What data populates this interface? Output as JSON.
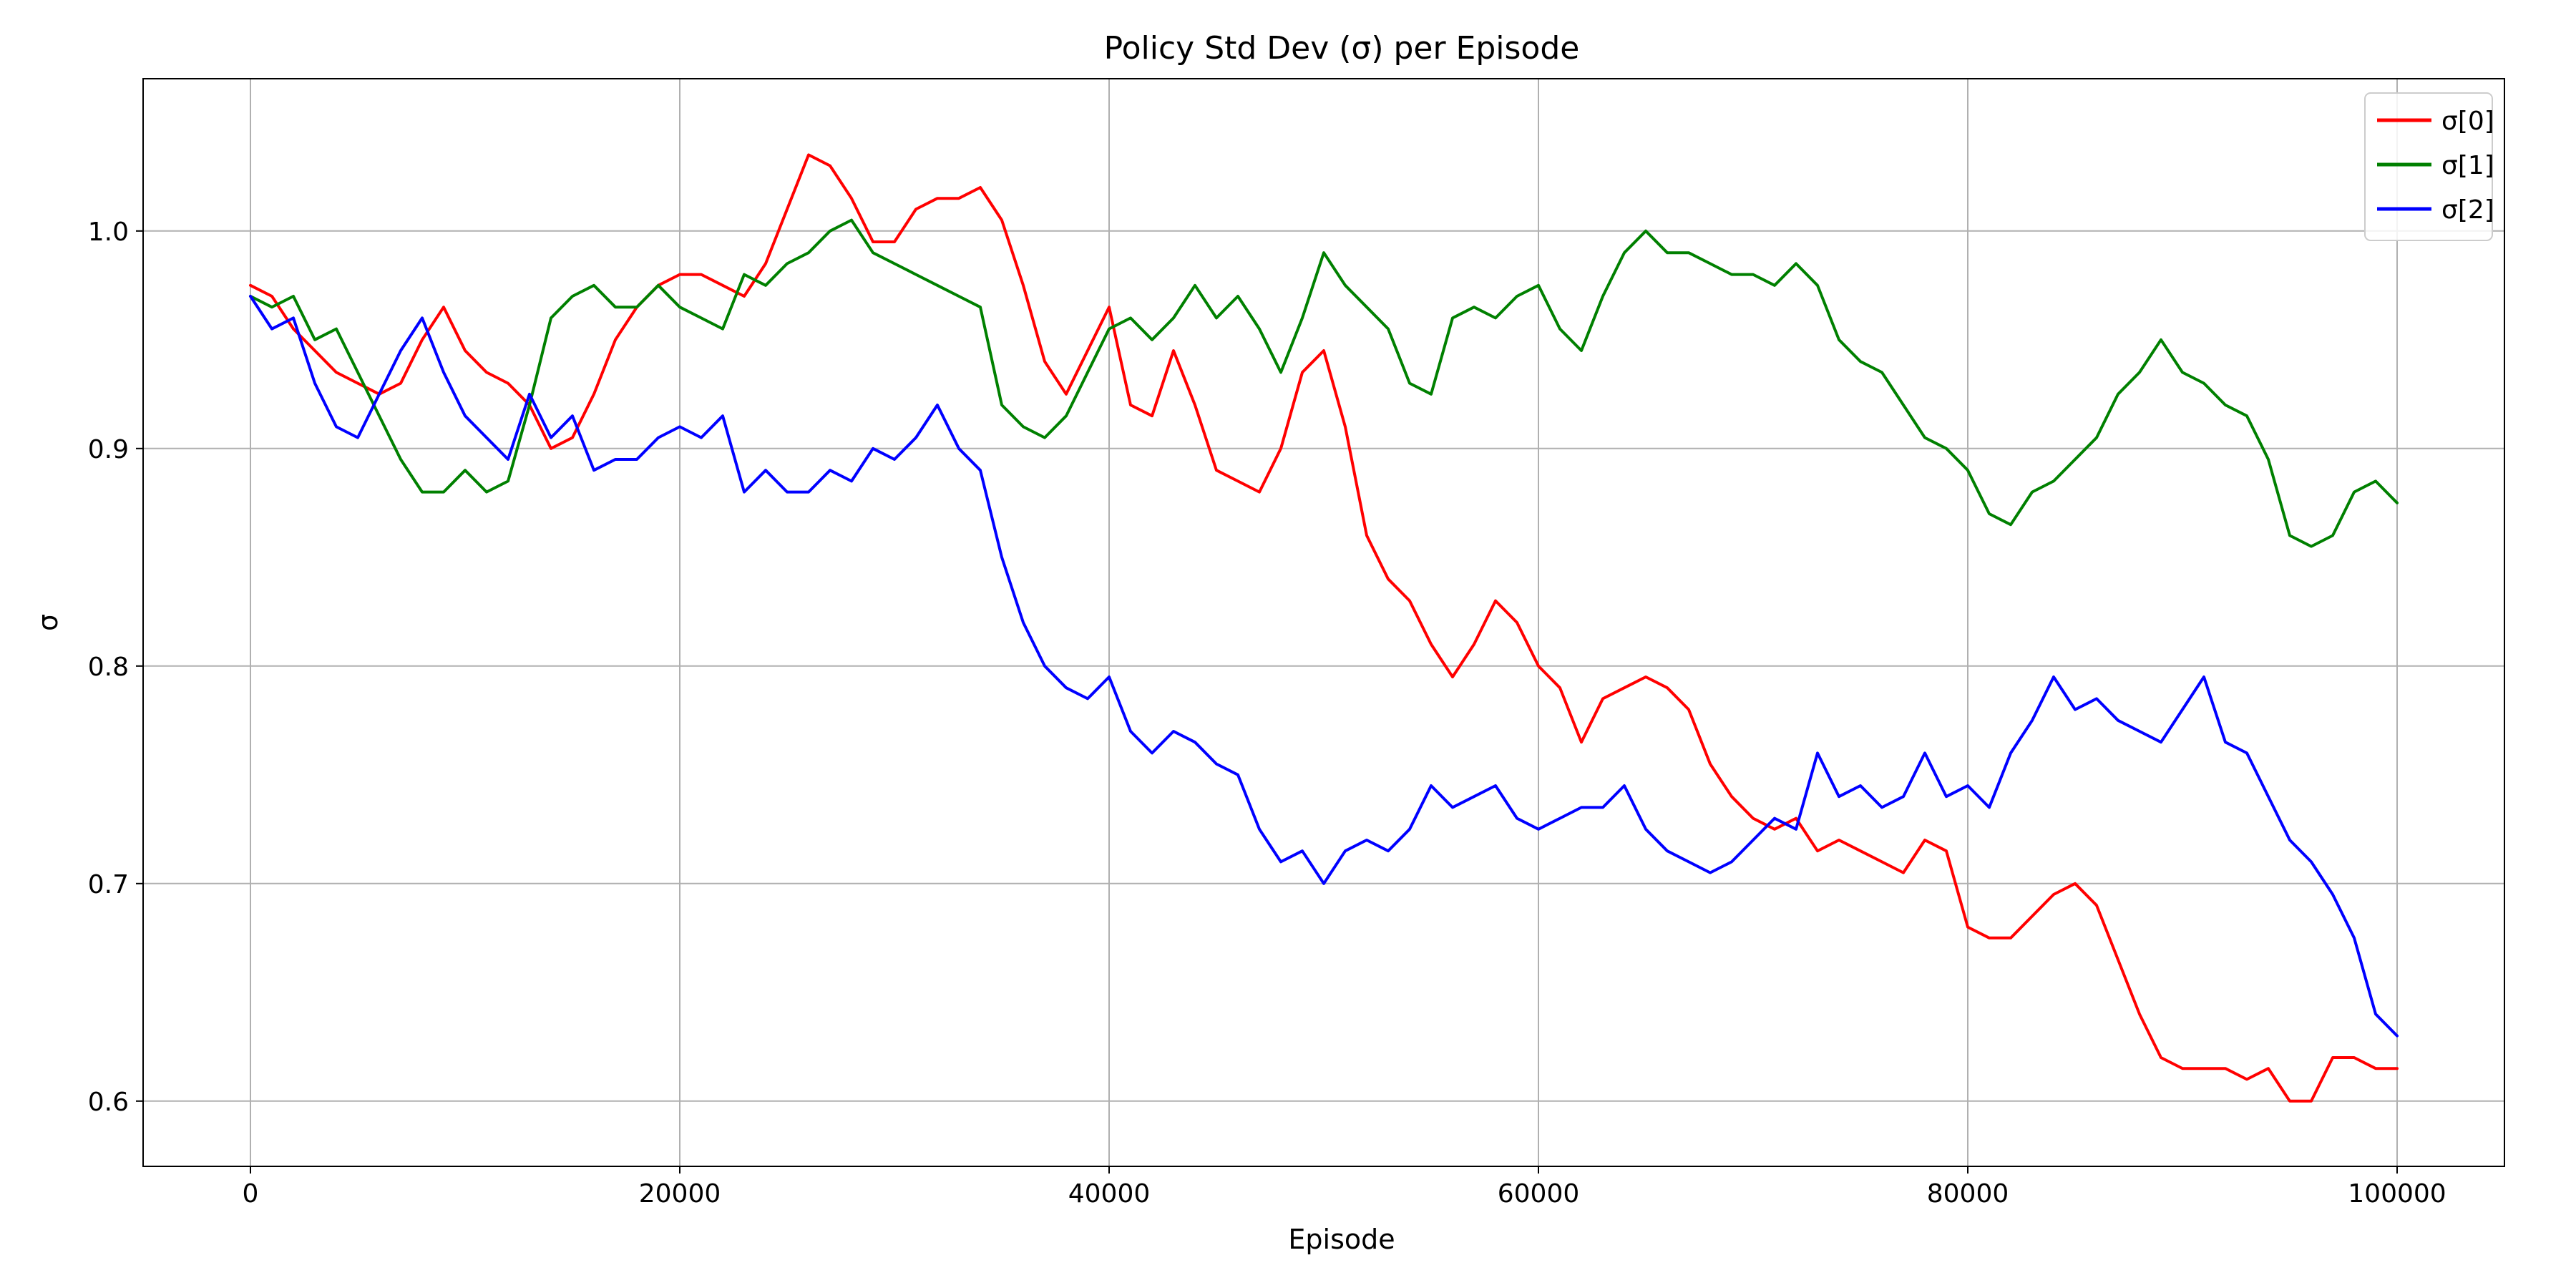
{
  "chart_data": {
    "type": "line",
    "title": "Policy Std Dev (σ) per Episode",
    "xlabel": "Episode",
    "ylabel": "σ",
    "xlim": [
      -5000,
      105000
    ],
    "ylim": [
      0.57,
      1.07
    ],
    "xticks": [
      0,
      20000,
      40000,
      60000,
      80000,
      100000
    ],
    "xtick_labels": [
      "0",
      "20000",
      "40000",
      "60000",
      "80000",
      "100000"
    ],
    "yticks": [
      0.6,
      0.7,
      0.8,
      0.9,
      1.0
    ],
    "ytick_labels": [
      "0.6",
      "0.7",
      "0.8",
      "0.9",
      "1.0"
    ],
    "grid": true,
    "legend_position": "top-right",
    "x": [
      0,
      1000,
      2000,
      3000,
      4000,
      5000,
      6000,
      7000,
      8000,
      9000,
      10000,
      11000,
      12000,
      13000,
      14000,
      15000,
      16000,
      17000,
      18000,
      19000,
      20000,
      21000,
      22000,
      23000,
      24000,
      25000,
      26000,
      27000,
      28000,
      29000,
      30000,
      31000,
      32000,
      33000,
      34000,
      35000,
      36000,
      37000,
      38000,
      39000,
      40000,
      41000,
      42000,
      43000,
      44000,
      45000,
      46000,
      47000,
      48000,
      49000,
      50000,
      51000,
      52000,
      53000,
      54000,
      55000,
      56000,
      57000,
      58000,
      59000,
      60000,
      61000,
      62000,
      63000,
      64000,
      65000,
      66000,
      67000,
      68000,
      69000,
      70000,
      71000,
      72000,
      73000,
      74000,
      75000,
      76000,
      77000,
      78000,
      79000,
      80000,
      81000,
      82000,
      83000,
      84000,
      85000,
      86000,
      87000,
      88000,
      89000,
      90000,
      91000,
      92000,
      93000,
      94000,
      95000,
      96000,
      97000,
      98000,
      99000,
      100000
    ],
    "series": [
      {
        "name": "σ[0]",
        "color": "#ff0000",
        "values": [
          0.975,
          0.97,
          0.955,
          0.945,
          0.935,
          0.93,
          0.925,
          0.93,
          0.95,
          0.965,
          0.945,
          0.935,
          0.93,
          0.92,
          0.9,
          0.905,
          0.925,
          0.95,
          0.965,
          0.975,
          0.98,
          0.98,
          0.975,
          0.97,
          0.985,
          1.01,
          1.035,
          1.03,
          1.015,
          0.995,
          0.995,
          1.01,
          1.015,
          1.015,
          1.02,
          1.005,
          0.975,
          0.94,
          0.925,
          0.945,
          0.965,
          0.92,
          0.915,
          0.945,
          0.92,
          0.89,
          0.885,
          0.88,
          0.9,
          0.935,
          0.945,
          0.91,
          0.86,
          0.84,
          0.83,
          0.81,
          0.795,
          0.81,
          0.83,
          0.82,
          0.8,
          0.79,
          0.765,
          0.785,
          0.79,
          0.795,
          0.79,
          0.78,
          0.755,
          0.74,
          0.73,
          0.725,
          0.73,
          0.715,
          0.72,
          0.715,
          0.71,
          0.705,
          0.72,
          0.715,
          0.68,
          0.675,
          0.675,
          0.685,
          0.695,
          0.7,
          0.69,
          0.665,
          0.64,
          0.62,
          0.615,
          0.615,
          0.615,
          0.61,
          0.615,
          0.6,
          0.6,
          0.62,
          0.62,
          0.615,
          0.615
        ]
      },
      {
        "name": "σ[1]",
        "color": "#008000",
        "values": [
          0.97,
          0.965,
          0.97,
          0.95,
          0.955,
          0.935,
          0.915,
          0.895,
          0.88,
          0.88,
          0.89,
          0.88,
          0.885,
          0.92,
          0.96,
          0.97,
          0.975,
          0.965,
          0.965,
          0.975,
          0.965,
          0.96,
          0.955,
          0.98,
          0.975,
          0.985,
          0.99,
          1.0,
          1.005,
          0.99,
          0.985,
          0.98,
          0.975,
          0.97,
          0.965,
          0.92,
          0.91,
          0.905,
          0.915,
          0.935,
          0.955,
          0.96,
          0.95,
          0.96,
          0.975,
          0.96,
          0.97,
          0.955,
          0.935,
          0.96,
          0.99,
          0.975,
          0.965,
          0.955,
          0.93,
          0.925,
          0.96,
          0.965,
          0.96,
          0.97,
          0.975,
          0.955,
          0.945,
          0.97,
          0.99,
          1.0,
          0.99,
          0.99,
          0.985,
          0.98,
          0.98,
          0.975,
          0.985,
          0.975,
          0.95,
          0.94,
          0.935,
          0.92,
          0.905,
          0.9,
          0.89,
          0.87,
          0.865,
          0.88,
          0.885,
          0.895,
          0.905,
          0.925,
          0.935,
          0.95,
          0.935,
          0.93,
          0.92,
          0.915,
          0.895,
          0.86,
          0.855,
          0.86,
          0.88,
          0.885,
          0.875
        ]
      },
      {
        "name": "σ[2]",
        "color": "#0000ff",
        "values": [
          0.97,
          0.955,
          0.96,
          0.93,
          0.91,
          0.905,
          0.925,
          0.945,
          0.96,
          0.935,
          0.915,
          0.905,
          0.895,
          0.925,
          0.905,
          0.915,
          0.89,
          0.895,
          0.895,
          0.905,
          0.91,
          0.905,
          0.915,
          0.88,
          0.89,
          0.88,
          0.88,
          0.89,
          0.885,
          0.9,
          0.895,
          0.905,
          0.92,
          0.9,
          0.89,
          0.85,
          0.82,
          0.8,
          0.79,
          0.785,
          0.795,
          0.77,
          0.76,
          0.77,
          0.765,
          0.755,
          0.75,
          0.725,
          0.71,
          0.715,
          0.7,
          0.715,
          0.72,
          0.715,
          0.725,
          0.745,
          0.735,
          0.74,
          0.745,
          0.73,
          0.725,
          0.73,
          0.735,
          0.735,
          0.745,
          0.725,
          0.715,
          0.71,
          0.705,
          0.71,
          0.72,
          0.73,
          0.725,
          0.76,
          0.74,
          0.745,
          0.735,
          0.74,
          0.76,
          0.74,
          0.745,
          0.735,
          0.76,
          0.775,
          0.795,
          0.78,
          0.785,
          0.775,
          0.77,
          0.765,
          0.78,
          0.795,
          0.765,
          0.76,
          0.74,
          0.72,
          0.71,
          0.695,
          0.675,
          0.64,
          0.63
        ]
      }
    ]
  }
}
